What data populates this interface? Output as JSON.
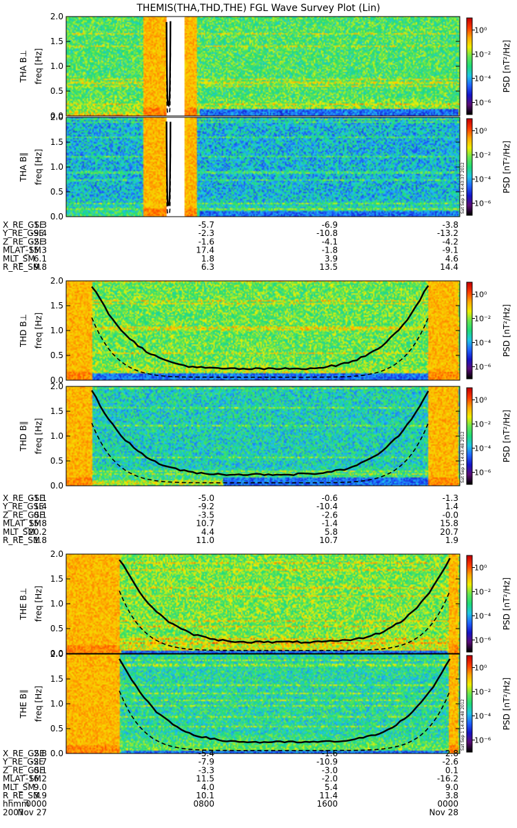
{
  "title": "THEMIS(THA,THD,THE) FGL Wave Survey Plot (Lin)",
  "colors": {
    "ramp": [
      "#000000",
      "#5a0a78",
      "#1414c8",
      "#1e64ff",
      "#1ec8e6",
      "#1edc78",
      "#64e650",
      "#f0f000",
      "#ffaa00",
      "#ff3c00",
      "#c80000"
    ],
    "background": "#ffffff",
    "fill_gap": "#ffffff"
  },
  "chart_data": [
    {
      "type": "heatmap",
      "panel": "THA B⊥",
      "ylabel": "freq [Hz]",
      "yticks": [
        "0.0",
        "0.5",
        "1.0",
        "1.5",
        "2.0"
      ],
      "ylim": [
        0,
        2.0
      ],
      "colorbar": {
        "label": "PSD [nT²/Hz]",
        "ticks": [
          "10⁰",
          "10⁻²",
          "10⁻⁴",
          "10⁻⁶"
        ],
        "log_range": [
          -7,
          1
        ]
      },
      "stamp": "",
      "background_level": 0.55,
      "hot_regions": [
        [
          0.195,
          0.255
        ],
        [
          0.265,
          0.33
        ]
      ],
      "blank_regions": [
        [
          0.255,
          0.3
        ]
      ],
      "dark_band": {
        "range": [
          0.34,
          1.0
        ],
        "max_freq": 0.12
      }
    },
    {
      "type": "heatmap",
      "panel": "THA B∥",
      "ylabel": "freq [Hz]",
      "yticks": [
        "0.0",
        "0.5",
        "1.0",
        "1.5",
        "2.0"
      ],
      "ylim": [
        0,
        2.0
      ],
      "colorbar": {
        "label": "PSD [nT²/Hz]",
        "ticks": [
          "10⁰",
          "10⁻²",
          "10⁻⁴",
          "10⁻⁶"
        ],
        "log_range": [
          -7,
          1
        ]
      },
      "stamp": "Sat Sep 1 14:43:37 2012",
      "background_level": 0.4,
      "hot_regions": [
        [
          0.195,
          0.255
        ],
        [
          0.265,
          0.33
        ]
      ],
      "blank_regions": [
        [
          0.255,
          0.3
        ]
      ],
      "dark_band": {
        "range": [
          0.34,
          1.0
        ],
        "max_freq": 0.1
      }
    },
    {
      "type": "heatmap",
      "panel": "THD B⊥",
      "ylabel": "freq [Hz]",
      "yticks": [
        "0.0",
        "0.5",
        "1.0",
        "1.5",
        "2.0"
      ],
      "ylim": [
        0,
        2.0
      ],
      "colorbar": {
        "label": "PSD [nT²/Hz]",
        "ticks": [
          "10⁰",
          "10⁻²",
          "10⁻⁴",
          "10⁻⁶"
        ],
        "log_range": [
          -7,
          1
        ]
      },
      "stamp": "",
      "background_level": 0.58,
      "hot_regions": [
        [
          0.0,
          0.065
        ],
        [
          0.92,
          1.0
        ]
      ],
      "blank_regions": [],
      "dark_band": {
        "range": [
          0.065,
          0.92
        ],
        "max_freq": 0.12
      }
    },
    {
      "type": "heatmap",
      "panel": "THD B∥",
      "ylabel": "freq [Hz]",
      "yticks": [
        "0.0",
        "0.5",
        "1.0",
        "1.5",
        "2.0"
      ],
      "ylim": [
        0,
        2.0
      ],
      "colorbar": {
        "label": "PSD [nT²/Hz]",
        "ticks": [
          "10⁰",
          "10⁻²",
          "10⁻⁴",
          "10⁻⁶"
        ],
        "log_range": [
          -7,
          1
        ]
      },
      "stamp": "Sat Sep 1 14:43:48 2012",
      "background_level": 0.45,
      "hot_regions": [
        [
          0.0,
          0.065
        ],
        [
          0.92,
          1.0
        ]
      ],
      "blank_regions": [],
      "dark_band": {
        "range": [
          0.4,
          0.92
        ],
        "max_freq": 0.15
      }
    },
    {
      "type": "heatmap",
      "panel": "THE B⊥",
      "ylabel": "freq [Hz]",
      "yticks": [
        "0.0",
        "0.5",
        "1.0",
        "1.5",
        "2.0"
      ],
      "ylim": [
        0,
        2.0
      ],
      "colorbar": {
        "label": "PSD [nT²/Hz]",
        "ticks": [
          "10⁰",
          "10⁻²",
          "10⁻⁴",
          "10⁻⁶"
        ],
        "log_range": [
          -7,
          1
        ]
      },
      "stamp": "",
      "background_level": 0.6,
      "hot_regions": [
        [
          0.0,
          0.135
        ],
        [
          0.975,
          1.0
        ]
      ],
      "blank_regions": [],
      "dark_band": {
        "range": [
          0.14,
          0.97
        ],
        "max_freq": 0.05
      }
    },
    {
      "type": "heatmap",
      "panel": "THE B∥",
      "ylabel": "freq [Hz]",
      "yticks": [
        "0.0",
        "0.5",
        "1.0",
        "1.5",
        "2.0"
      ],
      "ylim": [
        0,
        2.0
      ],
      "colorbar": {
        "label": "PSD [nT²/Hz]",
        "ticks": [
          "10⁰",
          "10⁻²",
          "10⁻⁴",
          "10⁻⁶"
        ],
        "log_range": [
          -7,
          1
        ]
      },
      "stamp": "Sat Sep 1 14:43:48 2012",
      "background_level": 0.48,
      "hot_regions": [
        [
          0.0,
          0.135
        ],
        [
          0.975,
          1.0
        ]
      ],
      "blank_regions": [],
      "dark_band": {
        "range": [
          0.14,
          0.97
        ],
        "max_freq": 0.05
      }
    }
  ],
  "ephemeris": [
    {
      "probe": "THA",
      "rows": [
        {
          "label": "X_RE_GSE",
          "values": [
            "1.3",
            "-5.7",
            "-6.9",
            "-3.8"
          ]
        },
        {
          "label": "Y_RE_GSE",
          "values": [
            "-9.4",
            "-2.3",
            "-10.8",
            "-13.2"
          ]
        },
        {
          "label": "Z_RE_GSE",
          "values": [
            "-2.3",
            "-1.6",
            "-4.1",
            "-4.2"
          ]
        },
        {
          "label": "MLAT_SM",
          "values": [
            "-15.3",
            "17.4",
            "-1.8",
            "-9.1"
          ]
        },
        {
          "label": "MLT_SM",
          "values": [
            "6.1",
            "1.8",
            "3.9",
            "4.6"
          ]
        },
        {
          "label": "R_RE_SM",
          "values": [
            "9.8",
            "6.3",
            "13.5",
            "14.4"
          ]
        }
      ]
    },
    {
      "probe": "THD",
      "rows": [
        {
          "label": "X_RE_GSE",
          "values": [
            "-1.1",
            "-5.0",
            "-0.6",
            "-1.3"
          ]
        },
        {
          "label": "Y_RE_GSE",
          "values": [
            "1.4",
            "-9.2",
            "-10.4",
            "1.4"
          ]
        },
        {
          "label": "Z_RE_GSE",
          "values": [
            "0.1",
            "-3.5",
            "-2.6",
            "-0.0"
          ]
        },
        {
          "label": "MLAT_SM",
          "values": [
            "15.8",
            "10.7",
            "-1.4",
            "15.8"
          ]
        },
        {
          "label": "MLT_SM",
          "values": [
            "20.2",
            "4.4",
            "5.8",
            "20.7"
          ]
        },
        {
          "label": "R_RE_SM",
          "values": [
            "1.8",
            "11.0",
            "10.7",
            "1.9"
          ]
        }
      ]
    },
    {
      "probe": "THE",
      "rows": [
        {
          "label": "X_RE_GSE",
          "values": [
            "2.8",
            "-5.4",
            "-1.6",
            "2.8"
          ]
        },
        {
          "label": "Y_RE_GSE",
          "values": [
            "-2.7",
            "-7.9",
            "-10.9",
            "-2.6"
          ]
        },
        {
          "label": "Z_RE_GSE",
          "values": [
            "0.1",
            "-3.3",
            "-3.0",
            "0.1"
          ]
        },
        {
          "label": "MLAT_SM",
          "values": [
            "-16.2",
            "11.5",
            "-2.0",
            "-16.2"
          ]
        },
        {
          "label": "MLT_SM",
          "values": [
            "9.0",
            "4.0",
            "5.4",
            "9.0"
          ]
        },
        {
          "label": "R_RE_SM",
          "values": [
            "3.9",
            "10.1",
            "11.4",
            "3.8"
          ]
        },
        {
          "label": "hhmm",
          "values": [
            "0000",
            "0800",
            "1600",
            "0000"
          ]
        }
      ]
    }
  ],
  "date_row": {
    "label": "2007",
    "values": [
      "Nov 27",
      "",
      "",
      "Nov 28"
    ]
  }
}
